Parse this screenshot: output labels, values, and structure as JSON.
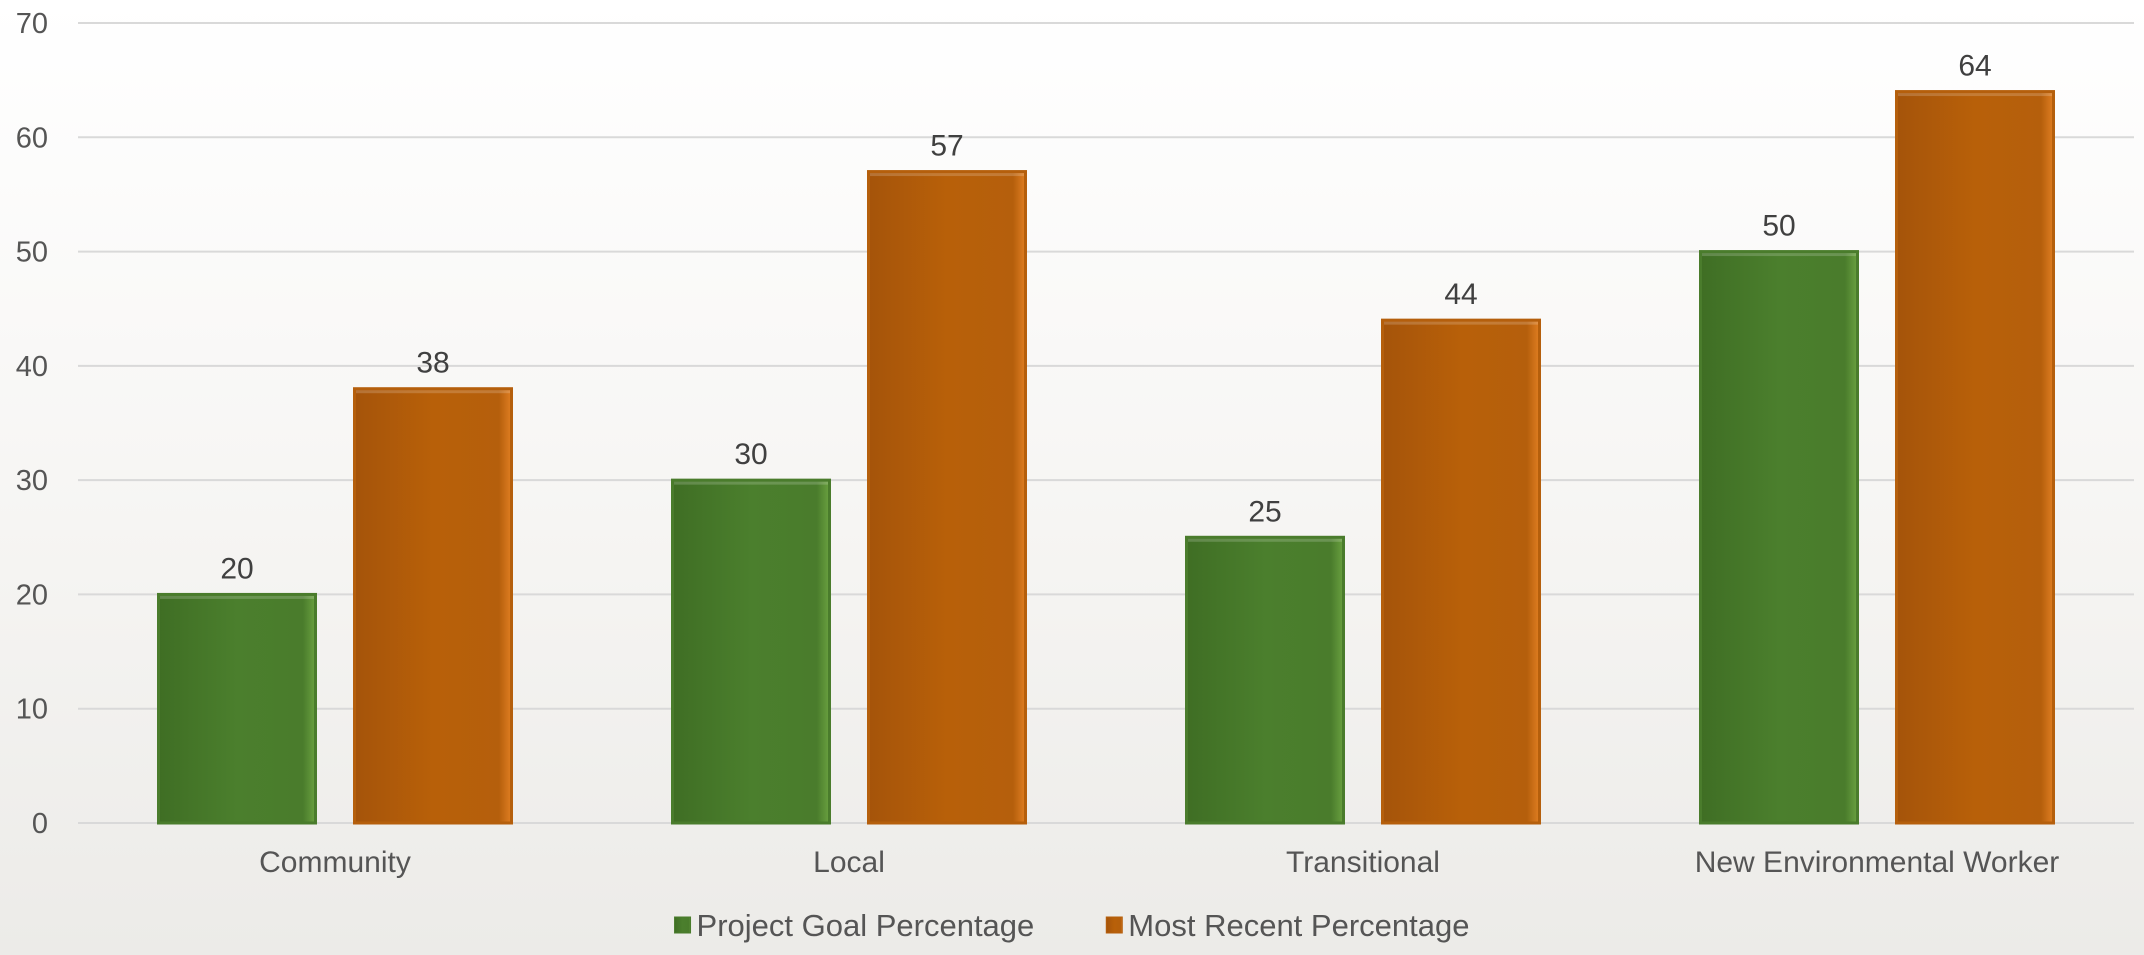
{
  "chart_data": {
    "type": "bar",
    "categories": [
      "Community",
      "Local",
      "Transitional",
      "New Environmental Worker"
    ],
    "series": [
      {
        "name": "Project Goal Percentage",
        "values": [
          20,
          30,
          25,
          50
        ],
        "color": "#4a7c2c"
      },
      {
        "name": "Most Recent Percentage",
        "values": [
          38,
          57,
          44,
          64
        ],
        "color": "#b55f0c"
      }
    ],
    "ylim": [
      0,
      70
    ],
    "yticks": [
      0,
      10,
      20,
      30,
      40,
      50,
      60,
      70
    ],
    "data_labels": true,
    "grid": true,
    "legend_position": "bottom",
    "title": "",
    "xlabel": "",
    "ylabel": ""
  }
}
